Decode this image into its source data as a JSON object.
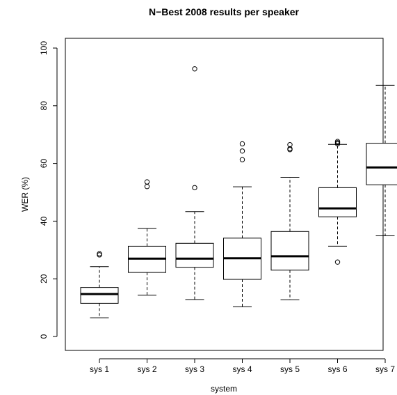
{
  "chart_data": {
    "type": "boxplot",
    "title": "N−Best 2008 results per speaker",
    "xlabel": "system",
    "ylabel": "WER (%)",
    "ylim": [
      0,
      100
    ],
    "yticks": [
      0,
      20,
      40,
      60,
      80,
      100
    ],
    "categories": [
      "sys 1",
      "sys 2",
      "sys 3",
      "sys 4",
      "sys 5",
      "sys 6",
      "sys 7"
    ],
    "boxes": [
      {
        "name": "sys 1",
        "whisker_low": 6.5,
        "q1": 11.5,
        "median": 14.7,
        "q3": 17.0,
        "whisker_high": 24.2,
        "outliers": [
          28.3,
          28.7
        ]
      },
      {
        "name": "sys 2",
        "whisker_low": 14.3,
        "q1": 22.2,
        "median": 27.0,
        "q3": 31.3,
        "whisker_high": 37.5,
        "outliers": [
          52.0,
          53.6
        ]
      },
      {
        "name": "sys 3",
        "whisker_low": 12.8,
        "q1": 24.0,
        "median": 27.0,
        "q3": 32.3,
        "whisker_high": 43.3,
        "outliers": [
          51.6,
          92.8
        ]
      },
      {
        "name": "sys 4",
        "whisker_low": 10.3,
        "q1": 19.8,
        "median": 27.1,
        "q3": 34.1,
        "whisker_high": 51.9,
        "outliers": [
          61.3,
          64.3,
          66.8
        ]
      },
      {
        "name": "sys 5",
        "whisker_low": 12.7,
        "q1": 23.0,
        "median": 27.8,
        "q3": 36.4,
        "whisker_high": 55.2,
        "outliers": [
          64.8,
          65.1,
          66.5
        ]
      },
      {
        "name": "sys 6",
        "whisker_low": 31.3,
        "q1": 41.5,
        "median": 44.4,
        "q3": 51.6,
        "whisker_high": 66.6,
        "outliers": [
          25.8,
          66.8,
          67.2,
          67.6
        ]
      },
      {
        "name": "sys 7",
        "whisker_low": 34.9,
        "q1": 52.6,
        "median": 58.6,
        "q3": 67.0,
        "whisker_high": 87.1,
        "outliers": []
      }
    ]
  }
}
